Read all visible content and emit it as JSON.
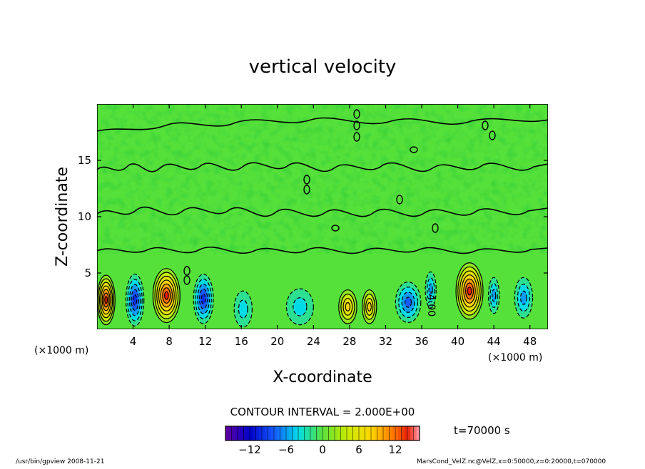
{
  "chart_data": {
    "type": "heatmap",
    "title": "vertical velocity",
    "xlabel": "X-coordinate",
    "ylabel": "Z-coordinate",
    "x_unit_left": "(×1000 m)",
    "x_unit_right": "(×1000 m)",
    "xlim": [
      0,
      50
    ],
    "ylim": [
      0,
      20
    ],
    "x_ticks": [
      4,
      8,
      12,
      16,
      20,
      24,
      28,
      32,
      36,
      40,
      44,
      48
    ],
    "y_ticks": [
      5,
      10,
      15
    ],
    "contour_label": "-4.00",
    "contour_interval_text": "CONTOUR INTERVAL = 2.000E+00",
    "time_text": "t=70000 s",
    "colorbar": {
      "range": [
        -16,
        16
      ],
      "tick_values": [
        -12,
        -6,
        0,
        6,
        12
      ],
      "tick_labels": [
        "−12",
        "−6",
        "0",
        "6",
        "12"
      ]
    },
    "cells": [
      {
        "x": 1.0,
        "z": 2.6,
        "value": 14,
        "rx": 1.0,
        "rz": 2.2
      },
      {
        "x": 4.2,
        "z": 2.6,
        "value": -9,
        "rx": 1.0,
        "rz": 2.3
      },
      {
        "x": 7.7,
        "z": 3.0,
        "value": 14,
        "rx": 1.5,
        "rz": 2.4
      },
      {
        "x": 11.8,
        "z": 2.7,
        "value": -10,
        "rx": 1.1,
        "rz": 2.2
      },
      {
        "x": 16.2,
        "z": 1.8,
        "value": -4,
        "rx": 1.0,
        "rz": 1.6
      },
      {
        "x": 22.5,
        "z": 2.0,
        "value": -4,
        "rx": 1.5,
        "rz": 1.6
      },
      {
        "x": 27.8,
        "z": 2.0,
        "value": 8,
        "rx": 1.0,
        "rz": 1.5
      },
      {
        "x": 30.2,
        "z": 2.0,
        "value": 8,
        "rx": 0.8,
        "rz": 1.5
      },
      {
        "x": 34.5,
        "z": 2.4,
        "value": -7,
        "rx": 1.4,
        "rz": 1.8
      },
      {
        "x": 37.0,
        "z": 3.5,
        "value": -5,
        "rx": 0.6,
        "rz": 1.6
      },
      {
        "x": 41.3,
        "z": 3.4,
        "value": 14,
        "rx": 1.5,
        "rz": 2.5
      },
      {
        "x": 44.0,
        "z": 3.0,
        "value": -6,
        "rx": 0.6,
        "rz": 1.6
      },
      {
        "x": 47.3,
        "z": 2.8,
        "value": -6,
        "rx": 1.0,
        "rz": 1.8
      }
    ]
  },
  "footer": {
    "left": "/usr/bin/gpview   2008-11-21",
    "right": "MarsCond_VelZ.nc@VelZ,x=0:50000,z=0:20000,t=070000"
  }
}
